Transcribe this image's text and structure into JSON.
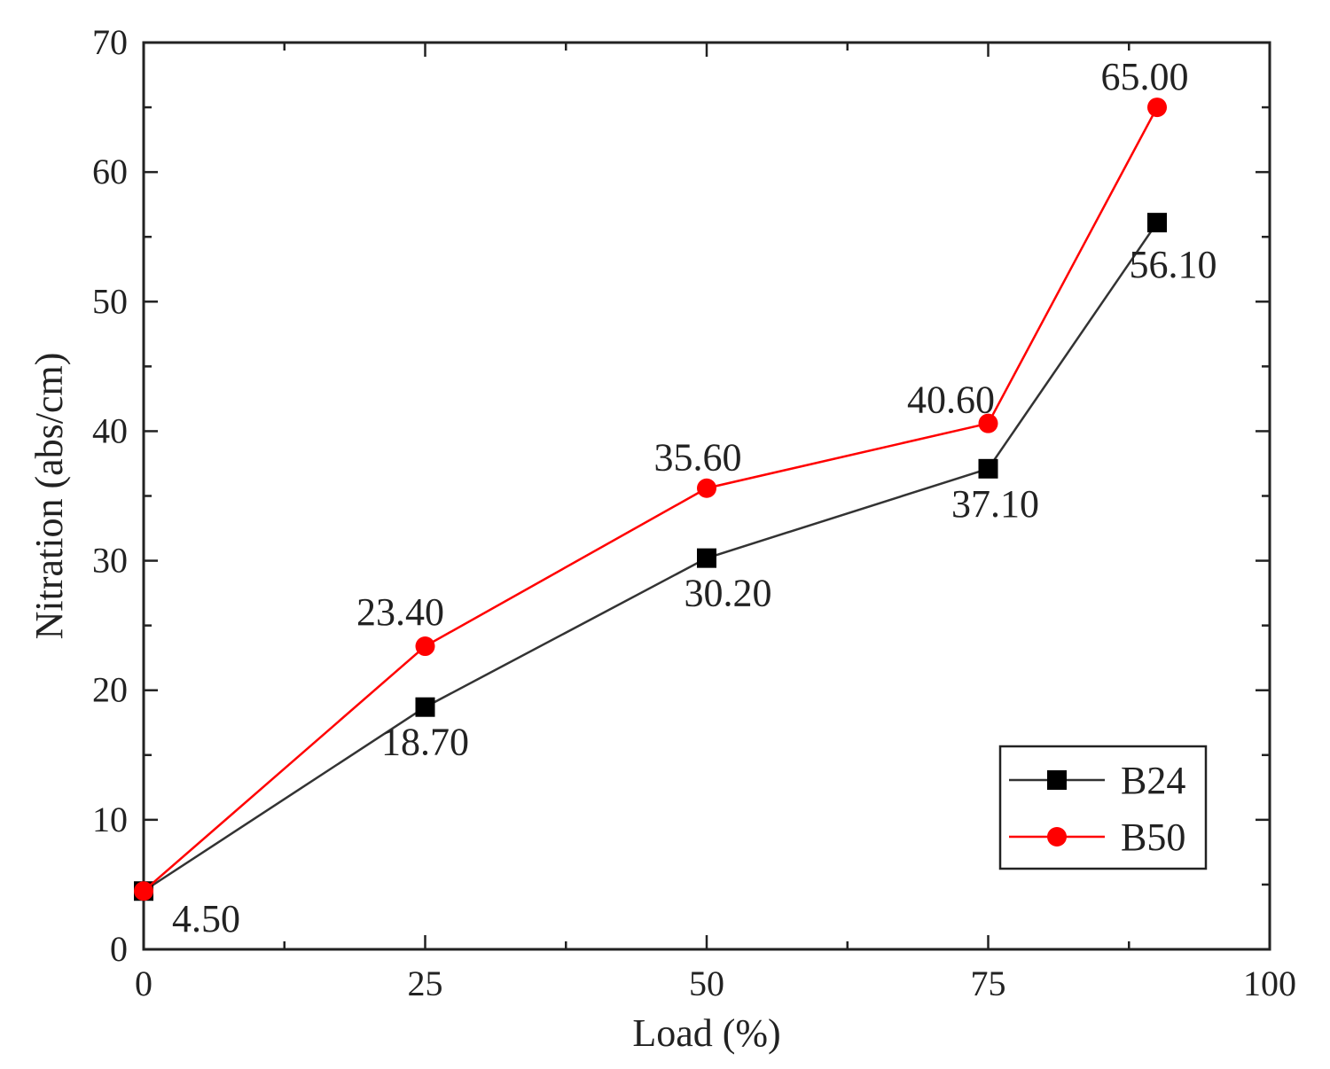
{
  "chart_data": {
    "type": "line",
    "xlabel": "Load (%)",
    "ylabel": "Nitration (abs/cm)",
    "xlim": [
      0,
      100
    ],
    "ylim": [
      0,
      70
    ],
    "xticks": [
      0,
      25,
      50,
      75,
      100
    ],
    "yticks": [
      0,
      10,
      20,
      30,
      40,
      50,
      60,
      70
    ],
    "x": [
      0,
      25,
      50,
      75,
      90
    ],
    "series": [
      {
        "name": "B24",
        "marker": "square",
        "color": "#000000",
        "line_color": "#333333",
        "values": [
          4.5,
          18.7,
          30.2,
          37.1,
          56.1
        ],
        "labels": [
          "4.50",
          "18.70",
          "30.20",
          "37.10",
          "56.10"
        ]
      },
      {
        "name": "B50",
        "marker": "circle",
        "color": "#ff0000",
        "line_color": "#ff0000",
        "values": [
          4.5,
          23.4,
          35.6,
          40.6,
          65.0
        ],
        "labels": [
          "",
          "23.40",
          "35.60",
          "40.60",
          "65.00"
        ]
      }
    ],
    "grid": false,
    "legend": "bottom-right"
  }
}
